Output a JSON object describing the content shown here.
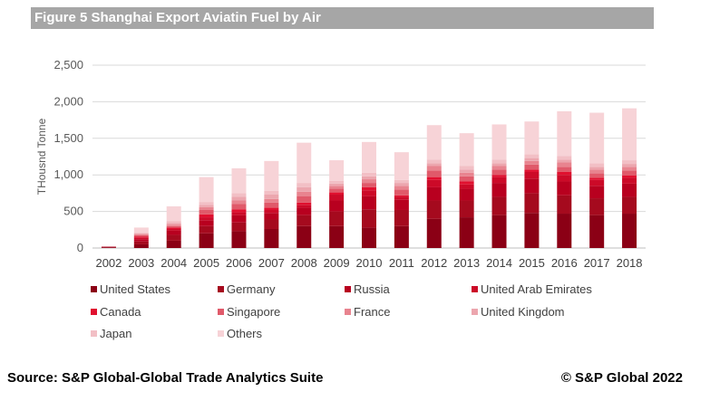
{
  "title": "Figure 5 Shanghai Export Aviatin Fuel by Air",
  "footer": {
    "source": "Source: S&P Global-Global Trade Analytics Suite",
    "copyright": "©  S&P Global 2022"
  },
  "chart_data": {
    "type": "bar",
    "stacked": true,
    "title": "Figure 5 Shanghai Export Aviatin Fuel by Air",
    "xlabel": "",
    "ylabel": "THousnd Tonne",
    "ylim": [
      0,
      2500
    ],
    "yticks": [
      0,
      500,
      1000,
      1500,
      2000,
      2500
    ],
    "ytick_labels": [
      "0",
      "500",
      "1,000",
      "1,500",
      "2,000",
      "2,500"
    ],
    "grid": true,
    "legend_position": "bottom",
    "categories": [
      "2002",
      "2003",
      "2004",
      "2005",
      "2006",
      "2007",
      "2008",
      "2009",
      "2010",
      "2011",
      "2012",
      "2013",
      "2014",
      "2015",
      "2016",
      "2017",
      "2018"
    ],
    "series": [
      {
        "name": "United States",
        "color": "#8b0015",
        "values": [
          10,
          50,
          100,
          200,
          230,
          260,
          300,
          300,
          280,
          300,
          400,
          420,
          450,
          480,
          470,
          450,
          470
        ]
      },
      {
        "name": "Germany",
        "color": "#a50a1e",
        "values": [
          5,
          40,
          80,
          100,
          120,
          130,
          150,
          200,
          250,
          220,
          250,
          230,
          250,
          270,
          250,
          230,
          230
        ]
      },
      {
        "name": "Russia",
        "color": "#b8001f",
        "values": [
          5,
          30,
          60,
          80,
          100,
          90,
          100,
          150,
          180,
          140,
          180,
          160,
          190,
          200,
          190,
          170,
          180
        ]
      },
      {
        "name": "United Arab Emirates",
        "color": "#cc0a28",
        "values": [
          0,
          20,
          20,
          40,
          40,
          40,
          40,
          80,
          80,
          40,
          100,
          60,
          80,
          90,
          90,
          80,
          80
        ]
      },
      {
        "name": "Canada",
        "color": "#e0102f",
        "values": [
          0,
          15,
          20,
          40,
          40,
          30,
          30,
          30,
          40,
          20,
          40,
          40,
          30,
          30,
          40,
          30,
          30
        ]
      },
      {
        "name": "Singapore",
        "color": "#e05a6a",
        "values": [
          0,
          20,
          20,
          60,
          70,
          70,
          90,
          50,
          60,
          80,
          90,
          70,
          70,
          70,
          70,
          60,
          70
        ]
      },
      {
        "name": "France",
        "color": "#e8848f",
        "values": [
          0,
          15,
          20,
          40,
          50,
          50,
          60,
          40,
          50,
          50,
          60,
          50,
          50,
          50,
          60,
          50,
          50
        ]
      },
      {
        "name": "United Kingdom",
        "color": "#eca6ae",
        "values": [
          0,
          10,
          20,
          30,
          50,
          60,
          60,
          30,
          40,
          40,
          40,
          40,
          40,
          40,
          40,
          40,
          40
        ]
      },
      {
        "name": "Japan",
        "color": "#f2bfc5",
        "values": [
          0,
          10,
          30,
          40,
          50,
          50,
          60,
          40,
          50,
          40,
          50,
          50,
          50,
          50,
          50,
          50,
          50
        ]
      },
      {
        "name": "Others",
        "color": "#f7d3d7",
        "values": [
          0,
          70,
          200,
          340,
          340,
          410,
          550,
          280,
          420,
          380,
          470,
          450,
          480,
          450,
          610,
          690,
          710
        ]
      }
    ]
  }
}
